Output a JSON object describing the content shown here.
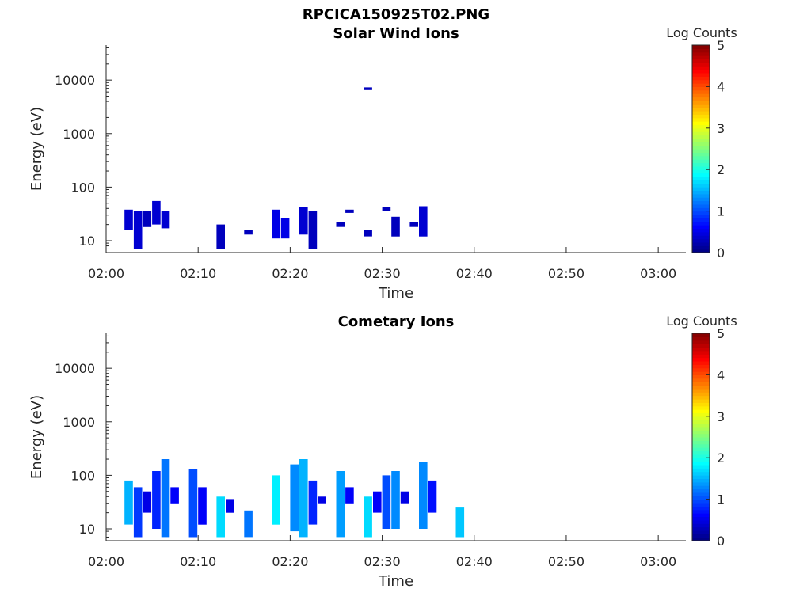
{
  "figure_title": "RPCICA150925T02.PNG",
  "chart_data": [
    {
      "type": "heatmap",
      "title": "Solar Wind Ions",
      "xlabel": "Time",
      "ylabel": "Energy (eV)",
      "yscale": "log",
      "ylim": [
        6,
        45000
      ],
      "xlim_minutes": [
        0,
        63
      ],
      "x_ticks": [
        "02:00",
        "02:10",
        "02:20",
        "02:30",
        "02:40",
        "02:50",
        "03:00"
      ],
      "y_ticks": [
        "10",
        "100",
        "1000",
        "10000"
      ],
      "colorbar": {
        "label": "Log Counts",
        "range": [
          0,
          5
        ],
        "ticks": [
          "0",
          "1",
          "2",
          "3",
          "4",
          "5"
        ],
        "colormap": "jet"
      },
      "cells": [
        {
          "t": "02:02",
          "e": [
            16,
            38
          ],
          "v": 0.4
        },
        {
          "t": "02:03",
          "e": [
            7,
            36
          ],
          "v": 0.4
        },
        {
          "t": "02:04",
          "e": [
            18,
            36
          ],
          "v": 0.3
        },
        {
          "t": "02:05",
          "e": [
            20,
            55
          ],
          "v": 0.4
        },
        {
          "t": "02:06",
          "e": [
            17,
            36
          ],
          "v": 0.4
        },
        {
          "t": "02:12",
          "e": [
            7,
            20
          ],
          "v": 0.3
        },
        {
          "t": "02:15",
          "e": [
            13,
            16
          ],
          "v": 0.3
        },
        {
          "t": "02:18",
          "e": [
            11,
            38
          ],
          "v": 0.5
        },
        {
          "t": "02:19",
          "e": [
            11,
            26
          ],
          "v": 0.5
        },
        {
          "t": "02:21",
          "e": [
            13,
            42
          ],
          "v": 0.4
        },
        {
          "t": "02:22",
          "e": [
            7,
            36
          ],
          "v": 0.3
        },
        {
          "t": "02:25",
          "e": [
            18,
            22
          ],
          "v": 0.3
        },
        {
          "t": "02:26",
          "e": [
            33,
            38
          ],
          "v": 0.3
        },
        {
          "t": "02:28",
          "e": [
            12,
            16
          ],
          "v": 0.3
        },
        {
          "t": "02:28",
          "e": [
            6500,
            7300
          ],
          "v": 0.3
        },
        {
          "t": "02:30",
          "e": [
            36,
            42
          ],
          "v": 0.3
        },
        {
          "t": "02:31",
          "e": [
            12,
            28
          ],
          "v": 0.3
        },
        {
          "t": "02:33",
          "e": [
            18,
            22
          ],
          "v": 0.3
        },
        {
          "t": "02:34",
          "e": [
            12,
            44
          ],
          "v": 0.4
        }
      ]
    },
    {
      "type": "heatmap",
      "title": "Cometary Ions",
      "xlabel": "Time",
      "ylabel": "Energy (eV)",
      "yscale": "log",
      "ylim": [
        6,
        45000
      ],
      "xlim_minutes": [
        0,
        63
      ],
      "x_ticks": [
        "02:00",
        "02:10",
        "02:20",
        "02:30",
        "02:40",
        "02:50",
        "03:00"
      ],
      "y_ticks": [
        "10",
        "100",
        "1000",
        "10000"
      ],
      "colorbar": {
        "label": "Log Counts",
        "range": [
          0,
          5
        ],
        "ticks": [
          "0",
          "1",
          "2",
          "3",
          "4",
          "5"
        ],
        "colormap": "jet"
      },
      "cells": [
        {
          "t": "02:02",
          "e": [
            12,
            80
          ],
          "v": 1.5
        },
        {
          "t": "02:03",
          "e": [
            7,
            60
          ],
          "v": 0.9
        },
        {
          "t": "02:04",
          "e": [
            20,
            50
          ],
          "v": 0.5
        },
        {
          "t": "02:05",
          "e": [
            10,
            120
          ],
          "v": 0.8
        },
        {
          "t": "02:06",
          "e": [
            7,
            200
          ],
          "v": 1.2
        },
        {
          "t": "02:07",
          "e": [
            30,
            60
          ],
          "v": 0.6
        },
        {
          "t": "02:09",
          "e": [
            7,
            130
          ],
          "v": 1.0
        },
        {
          "t": "02:10",
          "e": [
            12,
            60
          ],
          "v": 0.6
        },
        {
          "t": "02:12",
          "e": [
            7,
            40
          ],
          "v": 1.7
        },
        {
          "t": "02:13",
          "e": [
            20,
            36
          ],
          "v": 0.5
        },
        {
          "t": "02:15",
          "e": [
            7,
            22
          ],
          "v": 1.2
        },
        {
          "t": "02:18",
          "e": [
            12,
            100
          ],
          "v": 1.8
        },
        {
          "t": "02:20",
          "e": [
            9,
            160
          ],
          "v": 1.3
        },
        {
          "t": "02:21",
          "e": [
            7,
            200
          ],
          "v": 1.5
        },
        {
          "t": "02:22",
          "e": [
            12,
            80
          ],
          "v": 0.8
        },
        {
          "t": "02:23",
          "e": [
            30,
            40
          ],
          "v": 0.5
        },
        {
          "t": "02:25",
          "e": [
            7,
            120
          ],
          "v": 1.4
        },
        {
          "t": "02:26",
          "e": [
            30,
            60
          ],
          "v": 0.6
        },
        {
          "t": "02:28",
          "e": [
            7,
            40
          ],
          "v": 1.7
        },
        {
          "t": "02:29",
          "e": [
            20,
            50
          ],
          "v": 0.6
        },
        {
          "t": "02:30",
          "e": [
            10,
            100
          ],
          "v": 1.0
        },
        {
          "t": "02:31",
          "e": [
            10,
            120
          ],
          "v": 1.3
        },
        {
          "t": "02:32",
          "e": [
            30,
            50
          ],
          "v": 0.5
        },
        {
          "t": "02:34",
          "e": [
            10,
            180
          ],
          "v": 1.3
        },
        {
          "t": "02:35",
          "e": [
            20,
            80
          ],
          "v": 0.7
        },
        {
          "t": "02:38",
          "e": [
            7,
            25
          ],
          "v": 1.6
        }
      ]
    }
  ]
}
